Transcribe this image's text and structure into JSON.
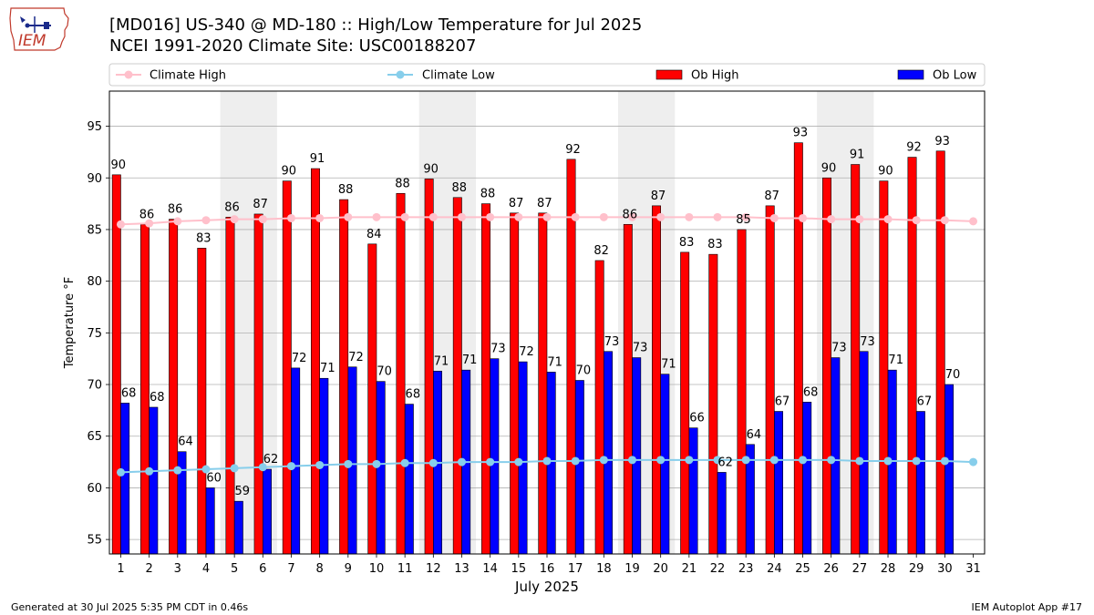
{
  "header": {
    "title_line1": "[MD016] US-340 @ MD-180 :: High/Low Temperature for Jul 2025",
    "title_line2": "NCEI 1991-2020 Climate Site: USC00188207",
    "logo_text": "IEM"
  },
  "footer": {
    "generated": "Generated at 30 Jul 2025 5:35 PM CDT in 0.46s",
    "app": "IEM Autoplot App #17"
  },
  "chart_data": {
    "type": "bar",
    "title": "[MD016] US-340 @ MD-180 :: High/Low Temperature for Jul 2025",
    "xlabel": "July 2025",
    "ylabel": "Temperature °F",
    "ylim": [
      53.6,
      98.4
    ],
    "yticks": [
      55,
      60,
      65,
      70,
      75,
      80,
      85,
      90,
      95
    ],
    "grid": true,
    "legend_position": "top",
    "categories": [
      "1",
      "2",
      "3",
      "4",
      "5",
      "6",
      "7",
      "8",
      "9",
      "10",
      "11",
      "12",
      "13",
      "14",
      "15",
      "16",
      "17",
      "18",
      "19",
      "20",
      "21",
      "22",
      "23",
      "24",
      "25",
      "26",
      "27",
      "28",
      "29",
      "30",
      "31"
    ],
    "weekend_shaded_days": [
      [
        5,
        6
      ],
      [
        12,
        13
      ],
      [
        19,
        20
      ],
      [
        26,
        27
      ]
    ],
    "series": [
      {
        "name": "Ob High",
        "kind": "bar",
        "color": "#ff0000",
        "values": [
          90.3,
          85.5,
          86.0,
          83.2,
          86.2,
          86.5,
          89.7,
          90.9,
          87.9,
          83.6,
          88.5,
          89.9,
          88.1,
          87.5,
          86.6,
          86.6,
          91.8,
          82.0,
          85.5,
          87.3,
          82.8,
          82.6,
          85.0,
          87.3,
          93.4,
          90.0,
          91.3,
          89.7,
          92.0,
          92.6,
          null
        ],
        "labels": [
          "90",
          "86",
          "86",
          "83",
          "86",
          "87",
          "90",
          "91",
          "88",
          "84",
          "88",
          "90",
          "88",
          "88",
          "87",
          "87",
          "92",
          "82",
          "86",
          "87",
          "83",
          "83",
          "85",
          "87",
          "93",
          "90",
          "91",
          "90",
          "92",
          "93",
          ""
        ]
      },
      {
        "name": "Ob Low",
        "kind": "bar",
        "color": "#0000ff",
        "values": [
          68.2,
          67.8,
          63.5,
          60.0,
          58.7,
          61.8,
          71.6,
          70.6,
          71.7,
          70.3,
          68.1,
          71.3,
          71.4,
          72.5,
          72.2,
          71.2,
          70.4,
          73.2,
          72.6,
          71.0,
          65.8,
          61.5,
          64.2,
          67.4,
          68.3,
          72.6,
          73.2,
          71.4,
          67.4,
          70.0,
          null
        ],
        "labels": [
          "68",
          "68",
          "64",
          "60",
          "59",
          "62",
          "72",
          "71",
          "72",
          "70",
          "68",
          "71",
          "71",
          "73",
          "72",
          "71",
          "70",
          "73",
          "73",
          "71",
          "66",
          "62",
          "64",
          "67",
          "68",
          "73",
          "73",
          "71",
          "67",
          "70",
          ""
        ]
      },
      {
        "name": "Climate High",
        "kind": "line",
        "color": "#ffc0cb",
        "values": [
          85.5,
          85.6,
          85.8,
          85.9,
          86.0,
          86.0,
          86.1,
          86.1,
          86.2,
          86.2,
          86.2,
          86.2,
          86.2,
          86.2,
          86.2,
          86.2,
          86.2,
          86.2,
          86.2,
          86.2,
          86.2,
          86.2,
          86.2,
          86.1,
          86.1,
          86.0,
          86.0,
          86.0,
          85.9,
          85.9,
          85.8
        ]
      },
      {
        "name": "Climate Low",
        "kind": "line",
        "color": "#87ceeb",
        "values": [
          61.5,
          61.6,
          61.7,
          61.8,
          61.9,
          62.0,
          62.1,
          62.2,
          62.3,
          62.3,
          62.4,
          62.4,
          62.5,
          62.5,
          62.5,
          62.6,
          62.6,
          62.7,
          62.7,
          62.7,
          62.7,
          62.7,
          62.7,
          62.7,
          62.7,
          62.7,
          62.6,
          62.6,
          62.6,
          62.6,
          62.5
        ]
      }
    ],
    "legend": [
      "Climate High",
      "Climate Low",
      "Ob High",
      "Ob Low"
    ]
  }
}
